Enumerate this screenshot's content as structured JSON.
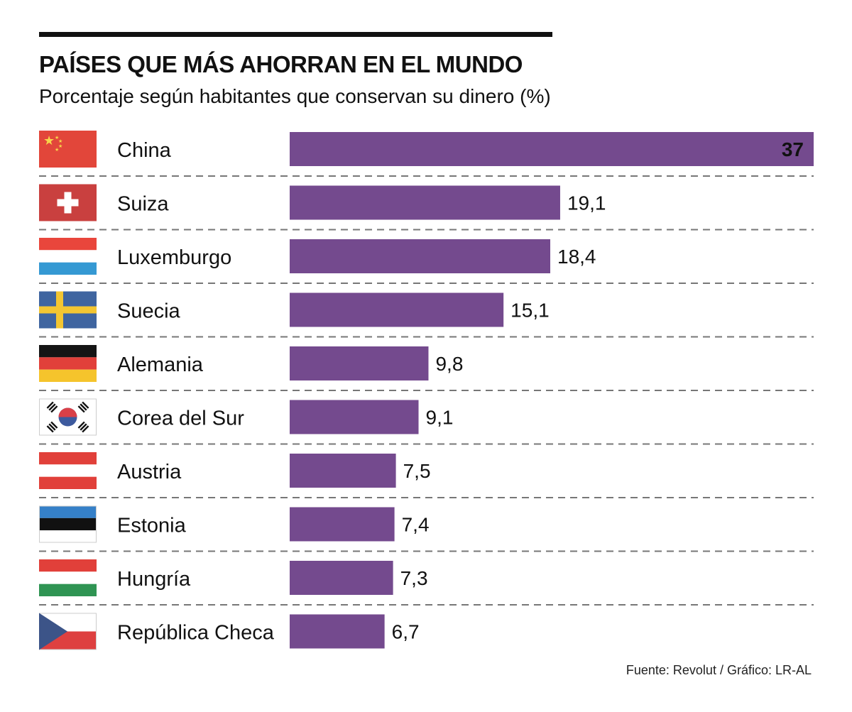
{
  "title": "PAÍSES QUE MÁS AHORRAN EN EL MUNDO",
  "subtitle": "Porcentaje según habitantes que conservan su dinero (%)",
  "source": "Fuente: Revolut / Gráfico: LR-AL",
  "chart_data": {
    "type": "bar",
    "orientation": "horizontal",
    "title": "PAÍSES QUE MÁS AHORRAN EN EL MUNDO",
    "subtitle": "Porcentaje según habitantes que conservan su dinero (%)",
    "categories": [
      "China",
      "Suiza",
      "Luxemburgo",
      "Suecia",
      "Alemania",
      "Corea del Sur",
      "Austria",
      "Estonia",
      "Hungría",
      "República Checa"
    ],
    "values": [
      37,
      19.1,
      18.4,
      15.1,
      9.8,
      9.1,
      7.5,
      7.4,
      7.3,
      6.7
    ],
    "value_labels": [
      "37",
      "19,1",
      "18,4",
      "15,1",
      "9,8",
      "9,1",
      "7,5",
      "7,4",
      "7,3",
      "6,7"
    ],
    "flags": [
      "china-flag",
      "switzerland-flag",
      "luxembourg-flag",
      "sweden-flag",
      "germany-flag",
      "south-korea-flag",
      "austria-flag",
      "estonia-flag",
      "hungary-flag",
      "czech-republic-flag"
    ],
    "xlim": [
      0,
      37
    ],
    "bar_color": "#744a8e",
    "grid": false,
    "row_separators": "dashed"
  }
}
